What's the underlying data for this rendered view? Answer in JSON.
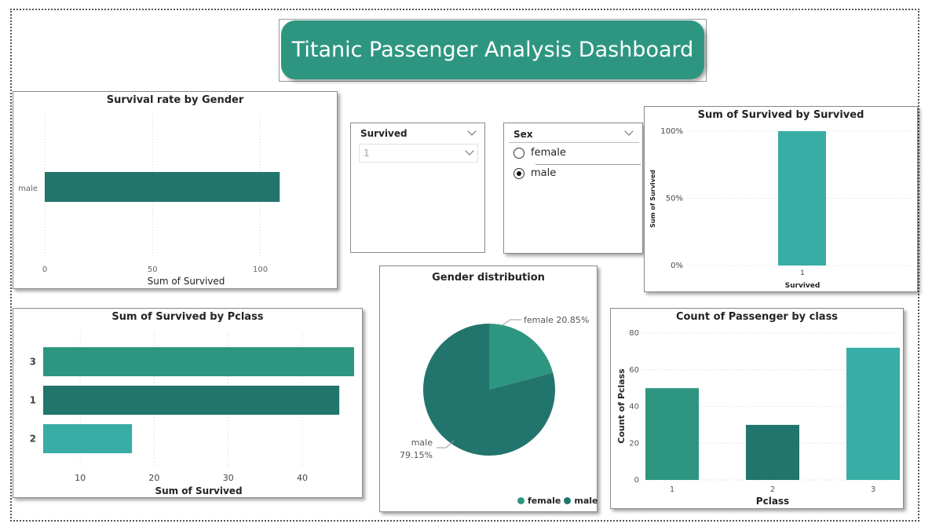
{
  "dashboard": {
    "title": "Titanic Passenger Analysis Dashboard"
  },
  "colors": {
    "teal_mid": "#2e9680",
    "teal_dark": "#22756c",
    "teal_light": "#38ada6"
  },
  "slicer_survived": {
    "header": "Survived",
    "value": "1"
  },
  "slicer_sex": {
    "header": "Sex",
    "options": [
      "female",
      "male"
    ],
    "selected": "male"
  },
  "chart_data": [
    {
      "id": "survival_by_gender",
      "type": "bar",
      "orientation": "horizontal",
      "title": "Survival rate by Gender",
      "categories": [
        "male"
      ],
      "values": [
        109
      ],
      "xlabel": "Sum of Survived",
      "xlim": [
        0,
        110
      ],
      "xticks": [
        0,
        50,
        100
      ],
      "grid": true
    },
    {
      "id": "survived_by_survived",
      "type": "bar",
      "title": "Sum of Survived by Survived",
      "categories": [
        "1"
      ],
      "values": [
        100
      ],
      "xlabel": "Survived",
      "ylabel": "Sum of Survived",
      "ylim": [
        0,
        100
      ],
      "yticks": [
        "0%",
        "50%",
        "100%"
      ],
      "grid": true
    },
    {
      "id": "survived_by_pclass",
      "type": "bar",
      "orientation": "horizontal",
      "title": "Sum of Survived by Pclass",
      "categories": [
        "3",
        "1",
        "2"
      ],
      "values": [
        47,
        45,
        17
      ],
      "colors": [
        "#2e9680",
        "#22756c",
        "#38ada6"
      ],
      "xlabel": "Sum of Survived",
      "xlim": [
        5,
        47
      ],
      "xticks": [
        10,
        20,
        30,
        40
      ],
      "grid": true
    },
    {
      "id": "gender_distribution",
      "type": "pie",
      "title": "Gender distribution",
      "categories": [
        "female",
        "male"
      ],
      "values": [
        20.85,
        79.15
      ],
      "labels": [
        "female 20.85%",
        "male",
        "79.15%"
      ],
      "colors": [
        "#2e9680",
        "#22756c"
      ],
      "legend": "bottom-right"
    },
    {
      "id": "passenger_by_class",
      "type": "bar",
      "title": "Count of Passenger by class",
      "categories": [
        "1",
        "2",
        "3"
      ],
      "values": [
        50,
        30,
        72
      ],
      "colors": [
        "#2e9680",
        "#22756c",
        "#38ada6"
      ],
      "xlabel": "Pclass",
      "ylabel": "Count of Pclass",
      "ylim": [
        0,
        80
      ],
      "yticks": [
        0,
        20,
        40,
        60,
        80
      ],
      "grid": true
    }
  ]
}
